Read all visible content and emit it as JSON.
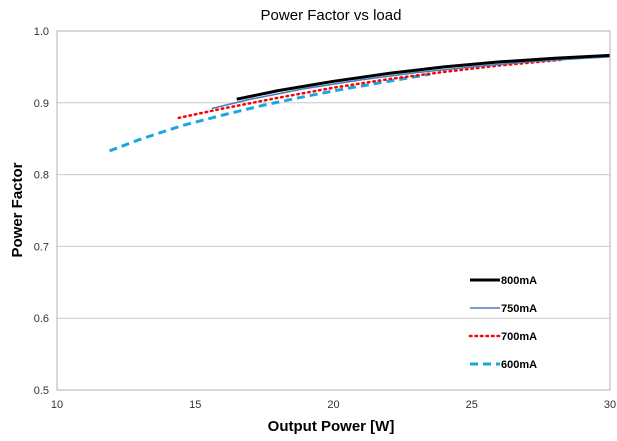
{
  "chart_data": {
    "type": "line",
    "title": "Power Factor vs load",
    "xlabel": "Output Power [W]",
    "ylabel": "Power Factor",
    "xlim": [
      10,
      30
    ],
    "ylim": [
      0.5,
      1.0
    ],
    "x_ticks": [
      "10",
      "15",
      "20",
      "25",
      "30"
    ],
    "y_ticks": [
      "0.5",
      "0.6",
      "0.7",
      "0.8",
      "0.9",
      "1.0"
    ],
    "grid": "horizontal",
    "legend_position": "bottom-right",
    "series": [
      {
        "name": "800mA",
        "color": "#000000",
        "style": "solid-thick",
        "x": [
          16.5,
          18,
          20,
          22,
          24,
          26,
          28,
          30
        ],
        "y": [
          0.905,
          0.917,
          0.93,
          0.941,
          0.95,
          0.957,
          0.962,
          0.966
        ]
      },
      {
        "name": "750mA",
        "color": "#4a7fb5",
        "style": "solid",
        "x": [
          15.6,
          17,
          19,
          21,
          23,
          25,
          27,
          29,
          30
        ],
        "y": [
          0.892,
          0.905,
          0.92,
          0.932,
          0.942,
          0.95,
          0.957,
          0.962,
          0.964
        ]
      },
      {
        "name": "700mA",
        "color": "#ff0000",
        "style": "dotted",
        "x": [
          14.4,
          16,
          18,
          20,
          22,
          24,
          26,
          28.3
        ],
        "y": [
          0.879,
          0.892,
          0.907,
          0.921,
          0.933,
          0.943,
          0.952,
          0.96
        ]
      },
      {
        "name": "600mA",
        "color": "#1aa7e0",
        "style": "dashed",
        "x": [
          11.9,
          13,
          14.5,
          16,
          17.5,
          19,
          20.5,
          22,
          23.5
        ],
        "y": [
          0.833,
          0.849,
          0.868,
          0.883,
          0.897,
          0.909,
          0.92,
          0.93,
          0.94
        ]
      }
    ]
  }
}
